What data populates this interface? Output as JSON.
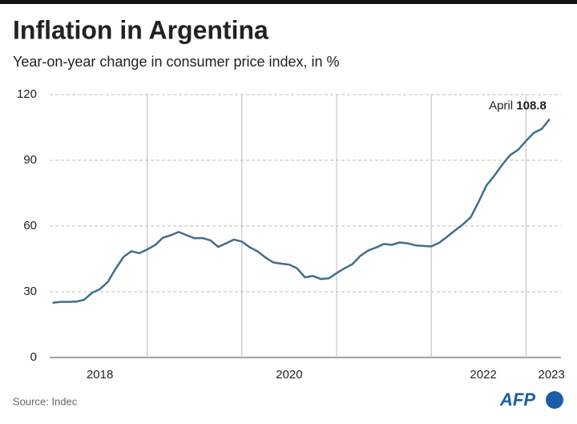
{
  "chart_data": {
    "type": "line",
    "title": "Inflation in Argentina",
    "subtitle": "Year-on-year change in consumer price index, in %",
    "source": "Source: Indec",
    "logo": "AFP",
    "annotation": "April",
    "x": [
      2018,
      2018.083,
      2018.167,
      2018.25,
      2018.333,
      2018.417,
      2018.5,
      2018.583,
      2018.667,
      2018.75,
      2018.833,
      2018.917,
      2019,
      2019.083,
      2019.167,
      2019.25,
      2019.333,
      2019.417,
      2019.5,
      2019.583,
      2019.667,
      2019.75,
      2019.833,
      2019.917,
      2020,
      2020.083,
      2020.167,
      2020.25,
      2020.333,
      2020.417,
      2020.5,
      2020.583,
      2020.667,
      2020.75,
      2020.833,
      2020.917,
      2021,
      2021.083,
      2021.167,
      2021.25,
      2021.333,
      2021.417,
      2021.5,
      2021.583,
      2021.667,
      2021.75,
      2021.833,
      2021.917,
      2022,
      2022.083,
      2022.167,
      2022.25,
      2022.333,
      2022.417,
      2022.5,
      2022.583,
      2022.667,
      2022.75,
      2022.833,
      2022.917,
      2023,
      2023.083,
      2023.167,
      2023.25
    ],
    "series": [
      {
        "color": "#3f6f8f",
        "values": [
          25,
          25.4,
          25.4,
          25.5,
          26.3,
          29.5,
          31.2,
          34.4,
          40.5,
          45.9,
          48.5,
          47.6,
          49.3,
          51.3,
          54.7,
          55.8,
          57.3,
          55.8,
          54.4,
          54.5,
          53.5,
          50.5,
          52.1,
          53.8,
          52.9,
          50.3,
          48.4,
          45.6,
          43.4,
          42.8,
          42.4,
          40.7,
          36.6,
          37.2,
          35.8,
          36.1,
          38.5,
          40.7,
          42.6,
          46.3,
          48.8,
          50.2,
          51.8,
          51.4,
          52.5,
          52.1,
          51.2,
          50.9,
          50.7,
          52.3,
          55.1,
          58.0,
          60.7,
          64.0,
          71.0,
          78.5,
          83.0,
          88.0,
          92.4,
          94.8,
          98.8,
          102.5,
          104.3,
          108.8
        ]
      }
    ],
    "xlim": [
      2017.97,
      2023.37
    ],
    "xgrid": [
      2019,
      2020,
      2021,
      2022,
      2023
    ],
    "xticks": [
      {
        "value": 2018.5,
        "label": "2018"
      },
      {
        "value": 2020.5,
        "label": "2020"
      },
      {
        "value": 2022.55,
        "label": "2022"
      },
      {
        "value": 2023.27,
        "label": "2023"
      }
    ],
    "ylim": [
      0,
      120
    ],
    "yticks": [
      0,
      30,
      60,
      90,
      120
    ],
    "grid": true
  }
}
